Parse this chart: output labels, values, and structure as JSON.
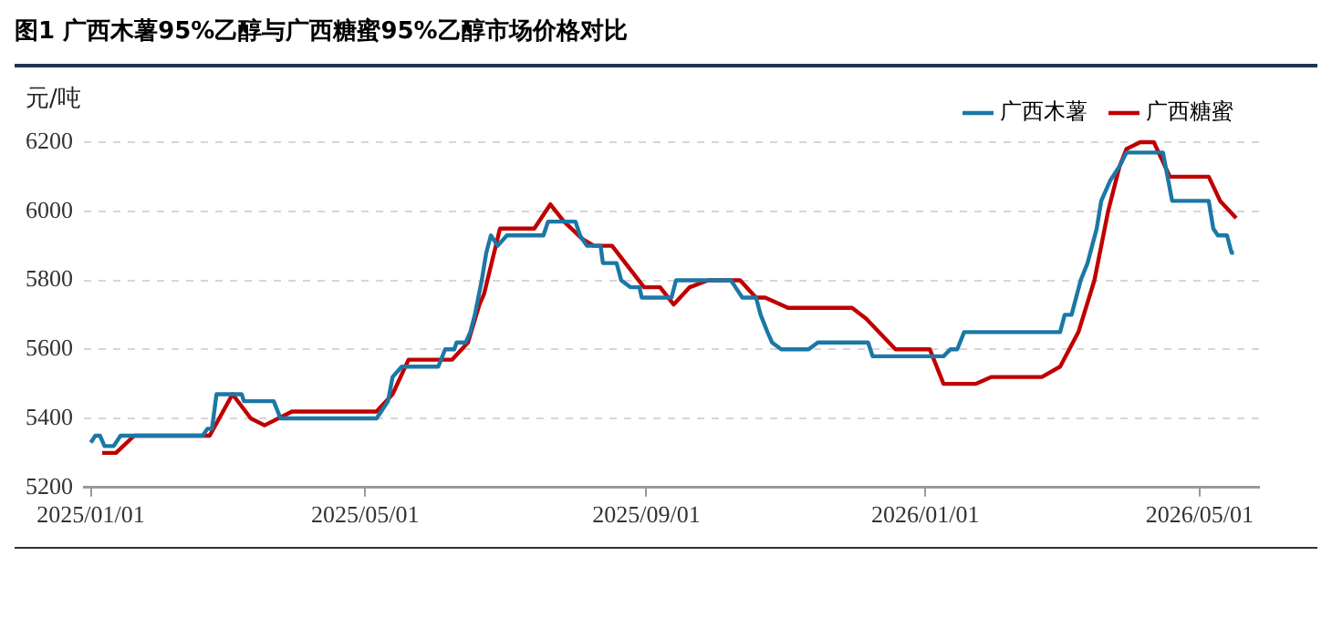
{
  "chart_data": {
    "type": "line",
    "title": "图1 广西木薯95%乙醇与广西糖蜜95%乙醇市场价格对比",
    "ylabel": "元/吨",
    "xlim": [
      "2024-12-29",
      "2026-05-27"
    ],
    "xticks": [
      {
        "value": "2025-01-01",
        "label": "2025/01/01"
      },
      {
        "value": "2025-05-01",
        "label": "2025/05/01"
      },
      {
        "value": "2025-09-01",
        "label": "2025/09/01"
      },
      {
        "value": "2026-01-01",
        "label": "2026/01/01"
      },
      {
        "value": "2026-05-01",
        "label": "2026/05/01"
      }
    ],
    "ylim": [
      5200,
      6200
    ],
    "yticks": [
      5200,
      5400,
      5600,
      5800,
      6000,
      6200
    ],
    "grid": "y",
    "legend": "top right",
    "marker": "none",
    "line_style": "solid",
    "series": [
      {
        "name": "广西木薯",
        "color": "#1b78a6",
        "x": [
          "2025-01-01",
          "2025-01-03",
          "2025-01-05",
          "2025-01-07",
          "2025-01-11",
          "2025-01-14",
          "2025-02-19",
          "2025-02-21",
          "2025-02-23",
          "2025-02-25",
          "2025-03-08",
          "2025-03-09",
          "2025-03-22",
          "2025-03-25",
          "2025-05-06",
          "2025-05-08",
          "2025-05-11",
          "2025-05-13",
          "2025-05-17",
          "2025-06-02",
          "2025-06-05",
          "2025-06-09",
          "2025-06-10",
          "2025-06-14",
          "2025-06-16",
          "2025-06-18",
          "2025-06-21",
          "2025-06-23",
          "2025-06-25",
          "2025-06-28",
          "2025-07-02",
          "2025-07-18",
          "2025-07-20",
          "2025-08-01",
          "2025-08-03",
          "2025-08-06",
          "2025-08-12",
          "2025-08-13",
          "2025-08-19",
          "2025-08-21",
          "2025-08-25",
          "2025-08-29",
          "2025-08-30",
          "2025-09-12",
          "2025-09-14",
          "2025-10-08",
          "2025-10-10",
          "2025-10-13",
          "2025-10-19",
          "2025-10-21",
          "2025-10-24",
          "2025-10-26",
          "2025-10-30",
          "2025-11-11",
          "2025-11-15",
          "2025-12-07",
          "2025-12-09",
          "2026-01-09",
          "2026-01-12",
          "2026-01-15",
          "2026-01-18",
          "2026-03-01",
          "2026-03-03",
          "2026-03-06",
          "2026-03-10",
          "2026-03-13",
          "2026-03-17",
          "2026-03-19",
          "2026-03-23",
          "2026-03-27",
          "2026-03-30",
          "2026-04-15",
          "2026-04-19",
          "2026-05-05",
          "2026-05-07",
          "2026-05-09",
          "2026-05-13",
          "2026-05-15",
          "2026-05-16"
        ],
        "values": [
          5330,
          5350,
          5350,
          5320,
          5320,
          5350,
          5350,
          5370,
          5370,
          5470,
          5470,
          5450,
          5450,
          5400,
          5400,
          5420,
          5450,
          5520,
          5550,
          5550,
          5600,
          5600,
          5620,
          5620,
          5650,
          5700,
          5800,
          5880,
          5930,
          5900,
          5930,
          5930,
          5970,
          5970,
          5930,
          5900,
          5900,
          5850,
          5850,
          5800,
          5780,
          5780,
          5750,
          5750,
          5800,
          5800,
          5780,
          5750,
          5750,
          5700,
          5650,
          5620,
          5600,
          5600,
          5620,
          5620,
          5580,
          5580,
          5600,
          5600,
          5650,
          5650,
          5700,
          5700,
          5800,
          5850,
          5950,
          6030,
          6090,
          6130,
          6170,
          6170,
          6030,
          6030,
          5950,
          5930,
          5930,
          5880,
          5880
        ]
      },
      {
        "name": "广西糖蜜",
        "color": "#c00000",
        "x": [
          "2025-01-06",
          "2025-01-12",
          "2025-01-20",
          "2025-02-22",
          "2025-03-04",
          "2025-03-12",
          "2025-03-18",
          "2025-03-30",
          "2025-05-06",
          "2025-05-13",
          "2025-05-20",
          "2025-06-08",
          "2025-06-15",
          "2025-06-20",
          "2025-06-22",
          "2025-06-29",
          "2025-07-14",
          "2025-07-21",
          "2025-07-27",
          "2025-08-04",
          "2025-08-09",
          "2025-08-17",
          "2025-08-24",
          "2025-08-31",
          "2025-09-07",
          "2025-09-13",
          "2025-09-20",
          "2025-09-28",
          "2025-10-12",
          "2025-10-19",
          "2025-10-23",
          "2025-11-02",
          "2025-11-30",
          "2025-12-06",
          "2025-12-19",
          "2026-01-03",
          "2026-01-09",
          "2026-01-23",
          "2026-01-30",
          "2026-02-21",
          "2026-03-01",
          "2026-03-09",
          "2026-03-16",
          "2026-03-22",
          "2026-03-27",
          "2026-03-30",
          "2026-04-05",
          "2026-04-11",
          "2026-04-18",
          "2026-05-05",
          "2026-05-10",
          "2026-05-17"
        ],
        "values": [
          5300,
          5300,
          5350,
          5350,
          5470,
          5400,
          5380,
          5420,
          5420,
          5470,
          5570,
          5570,
          5620,
          5730,
          5760,
          5950,
          5950,
          6020,
          5970,
          5920,
          5900,
          5900,
          5840,
          5780,
          5780,
          5730,
          5780,
          5800,
          5800,
          5750,
          5750,
          5720,
          5720,
          5690,
          5600,
          5600,
          5500,
          5500,
          5520,
          5520,
          5550,
          5650,
          5800,
          6000,
          6130,
          6180,
          6200,
          6200,
          6100,
          6100,
          6030,
          5980
        ]
      }
    ]
  }
}
